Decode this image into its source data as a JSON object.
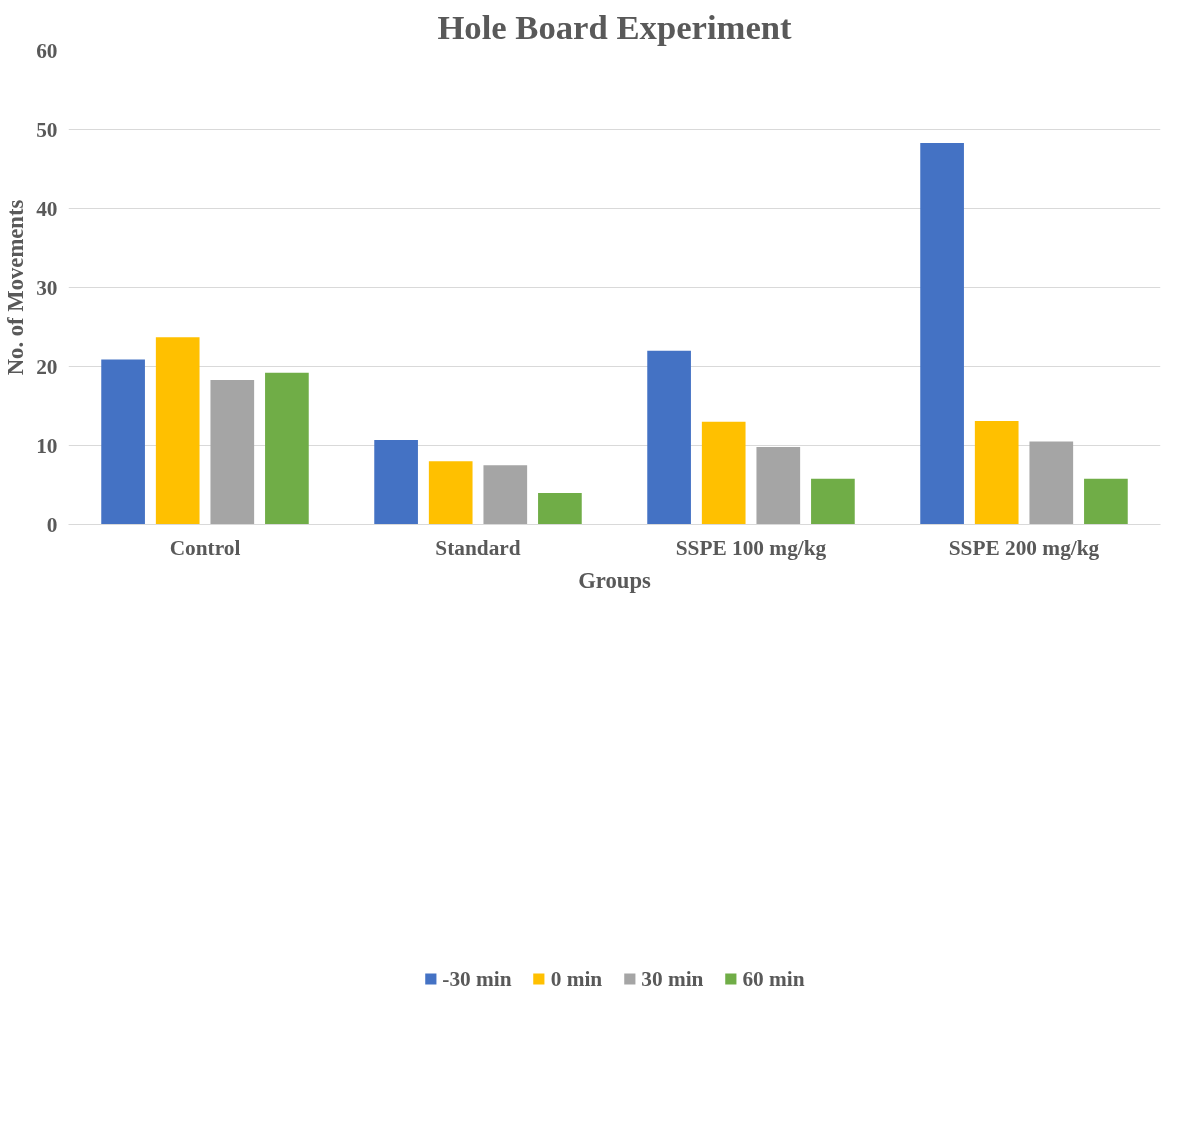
{
  "chart_data": {
    "type": "bar",
    "title": "Hole Board Experiment",
    "xlabel": "Groups",
    "ylabel": "No. of Movements",
    "categories": [
      "Control",
      "Standard",
      "SSPE 100 mg/kg",
      "SSPE 200 mg/kg"
    ],
    "series": [
      {
        "name": "-30 min",
        "color": "#4472c4",
        "values": [
          20.9,
          10.7,
          22.0,
          48.3
        ]
      },
      {
        "name": "0 min",
        "color": "#ffc000",
        "values": [
          23.7,
          8.0,
          13.0,
          13.1
        ]
      },
      {
        "name": "30 min",
        "color": "#a5a5a5",
        "values": [
          18.3,
          7.5,
          9.8,
          10.5
        ]
      },
      {
        "name": "60 min",
        "color": "#70ad47",
        "values": [
          19.2,
          4.0,
          5.8,
          5.8
        ]
      }
    ],
    "ylim": [
      0,
      60
    ],
    "yticks": [
      0,
      10,
      20,
      30,
      40,
      50,
      60
    ],
    "grid": "y",
    "legend": "bottom"
  }
}
